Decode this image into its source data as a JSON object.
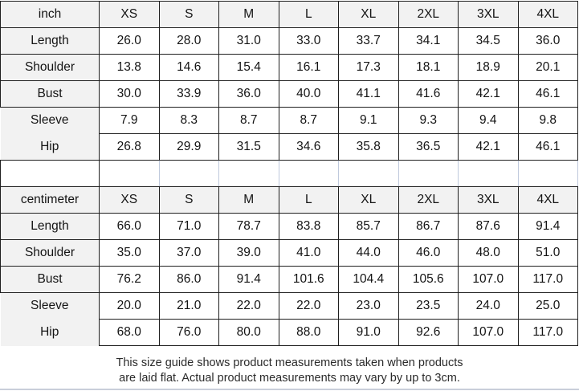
{
  "colors": {
    "border": "#1f1f1f",
    "header_bg": "#f2f2f2",
    "cell_bg": "#ffffff",
    "spacer_gridline": "#bfc9dc",
    "bottom_line": "#c9cfda",
    "text": "#141414"
  },
  "tables": [
    {
      "unit_label": "inch",
      "sizes": [
        "XS",
        "S",
        "M",
        "L",
        "XL",
        "2XL",
        "3XL",
        "4XL"
      ],
      "rows": [
        {
          "label": "Length",
          "values": [
            "26.0",
            "28.0",
            "31.0",
            "33.0",
            "33.7",
            "34.1",
            "34.5",
            "36.0"
          ]
        },
        {
          "label": "Shoulder",
          "values": [
            "13.8",
            "14.6",
            "15.4",
            "16.1",
            "17.3",
            "18.1",
            "18.9",
            "20.1"
          ]
        },
        {
          "label": "Bust",
          "values": [
            "30.0",
            "33.9",
            "36.0",
            "40.0",
            "41.1",
            "41.6",
            "42.1",
            "46.1"
          ]
        },
        {
          "label": "Sleeve",
          "values": [
            "7.9",
            "8.3",
            "8.7",
            "8.7",
            "9.1",
            "9.3",
            "9.4",
            "9.8"
          ]
        },
        {
          "label": "Hip",
          "values": [
            "26.8",
            "29.9",
            "31.5",
            "34.6",
            "35.8",
            "36.5",
            "42.1",
            "46.1"
          ]
        }
      ]
    },
    {
      "unit_label": "centimeter",
      "sizes": [
        "XS",
        "S",
        "M",
        "L",
        "XL",
        "2XL",
        "3XL",
        "4XL"
      ],
      "rows": [
        {
          "label": "Length",
          "values": [
            "66.0",
            "71.0",
            "78.7",
            "83.8",
            "85.7",
            "86.7",
            "87.6",
            "91.4"
          ]
        },
        {
          "label": "Shoulder",
          "values": [
            "35.0",
            "37.0",
            "39.0",
            "41.0",
            "44.0",
            "46.0",
            "48.0",
            "51.0"
          ]
        },
        {
          "label": "Bust",
          "values": [
            "76.2",
            "86.0",
            "91.4",
            "101.6",
            "104.4",
            "105.6",
            "107.0",
            "117.0"
          ]
        },
        {
          "label": "Sleeve",
          "values": [
            "20.0",
            "21.0",
            "22.0",
            "22.0",
            "23.0",
            "23.5",
            "24.0",
            "25.0"
          ]
        },
        {
          "label": "Hip",
          "values": [
            "68.0",
            "76.0",
            "80.0",
            "88.0",
            "91.0",
            "92.6",
            "107.0",
            "117.0"
          ]
        }
      ]
    }
  ],
  "footer": {
    "line1": "This size guide shows product measurements taken when products",
    "line2": "are laid flat. Actual product measurements may vary by up to 3cm."
  },
  "chart_data": [
    {
      "type": "table",
      "title": "Size guide (inch)",
      "columns": [
        "inch",
        "XS",
        "S",
        "M",
        "L",
        "XL",
        "2XL",
        "3XL",
        "4XL"
      ],
      "rows": [
        [
          "Length",
          26.0,
          28.0,
          31.0,
          33.0,
          33.7,
          34.1,
          34.5,
          36.0
        ],
        [
          "Shoulder",
          13.8,
          14.6,
          15.4,
          16.1,
          17.3,
          18.1,
          18.9,
          20.1
        ],
        [
          "Bust",
          30.0,
          33.9,
          36.0,
          40.0,
          41.1,
          41.6,
          42.1,
          46.1
        ],
        [
          "Sleeve",
          7.9,
          8.3,
          8.7,
          8.7,
          9.1,
          9.3,
          9.4,
          9.8
        ],
        [
          "Hip",
          26.8,
          29.9,
          31.5,
          34.6,
          35.8,
          36.5,
          42.1,
          46.1
        ]
      ]
    },
    {
      "type": "table",
      "title": "Size guide (centimeter)",
      "columns": [
        "centimeter",
        "XS",
        "S",
        "M",
        "L",
        "XL",
        "2XL",
        "3XL",
        "4XL"
      ],
      "rows": [
        [
          "Length",
          66.0,
          71.0,
          78.7,
          83.8,
          85.7,
          86.7,
          87.6,
          91.4
        ],
        [
          "Shoulder",
          35.0,
          37.0,
          39.0,
          41.0,
          44.0,
          46.0,
          48.0,
          51.0
        ],
        [
          "Bust",
          76.2,
          86.0,
          91.4,
          101.6,
          104.4,
          105.6,
          107.0,
          117.0
        ],
        [
          "Sleeve",
          20.0,
          21.0,
          22.0,
          22.0,
          23.0,
          23.5,
          24.0,
          25.0
        ],
        [
          "Hip",
          68.0,
          76.0,
          80.0,
          88.0,
          91.0,
          92.6,
          107.0,
          117.0
        ]
      ]
    }
  ]
}
